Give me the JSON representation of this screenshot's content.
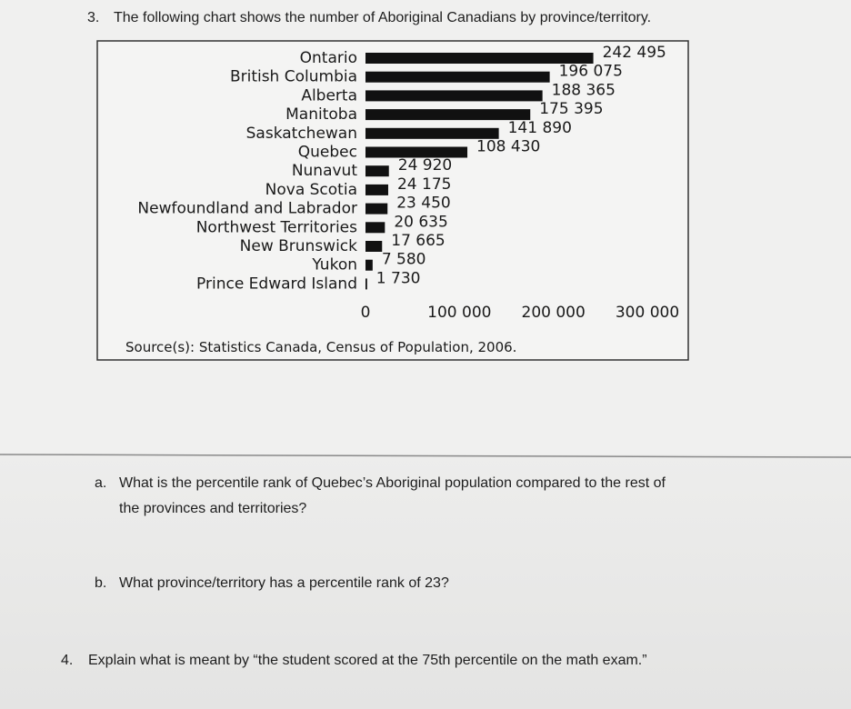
{
  "question_3": {
    "number": "3.",
    "text": "The following chart shows the number of Aboriginal Canadians by province/territory."
  },
  "chart_data": {
    "type": "bar",
    "orientation": "horizontal",
    "categories": [
      "Ontario",
      "British Columbia",
      "Alberta",
      "Manitoba",
      "Saskatchewan",
      "Quebec",
      "Nunavut",
      "Nova Scotia",
      "Newfoundland and Labrador",
      "Northwest Territories",
      "New Brunswick",
      "Yukon",
      "Prince Edward Island"
    ],
    "values": [
      242495,
      196075,
      188365,
      175395,
      141890,
      108430,
      24920,
      24175,
      23450,
      20635,
      17665,
      7580,
      1730
    ],
    "value_labels": [
      "242 495",
      "196 075",
      "188 365",
      "175 395",
      "141 890",
      "108 430",
      "24 920",
      "24 175",
      "23 450",
      "20 635",
      "17 665",
      "7 580",
      "1 730"
    ],
    "color": "#111111",
    "xlim": [
      0,
      300000
    ],
    "xticks": [
      0,
      {
        "value": 100000,
        "label": "100 000"
      },
      {
        "value": 200000,
        "label": "200 000"
      },
      {
        "value": 300000,
        "label": "300 000"
      }
    ],
    "grid": false,
    "source": "Source(s): Statistics Canada, Census of Population, 2006."
  },
  "questions": [
    {
      "number": "a.",
      "text": [
        "What is the percentile rank of Quebec’s Aboriginal population compared to the rest of",
        "the provinces and territories?"
      ]
    },
    {
      "number": "b.",
      "text": [
        "What province/territory has a percentile rank of 23?"
      ]
    }
  ],
  "question_4": {
    "number": "4.",
    "text": "Explain what is meant by “the student scored at the 75th percentile on the math exam.”"
  }
}
